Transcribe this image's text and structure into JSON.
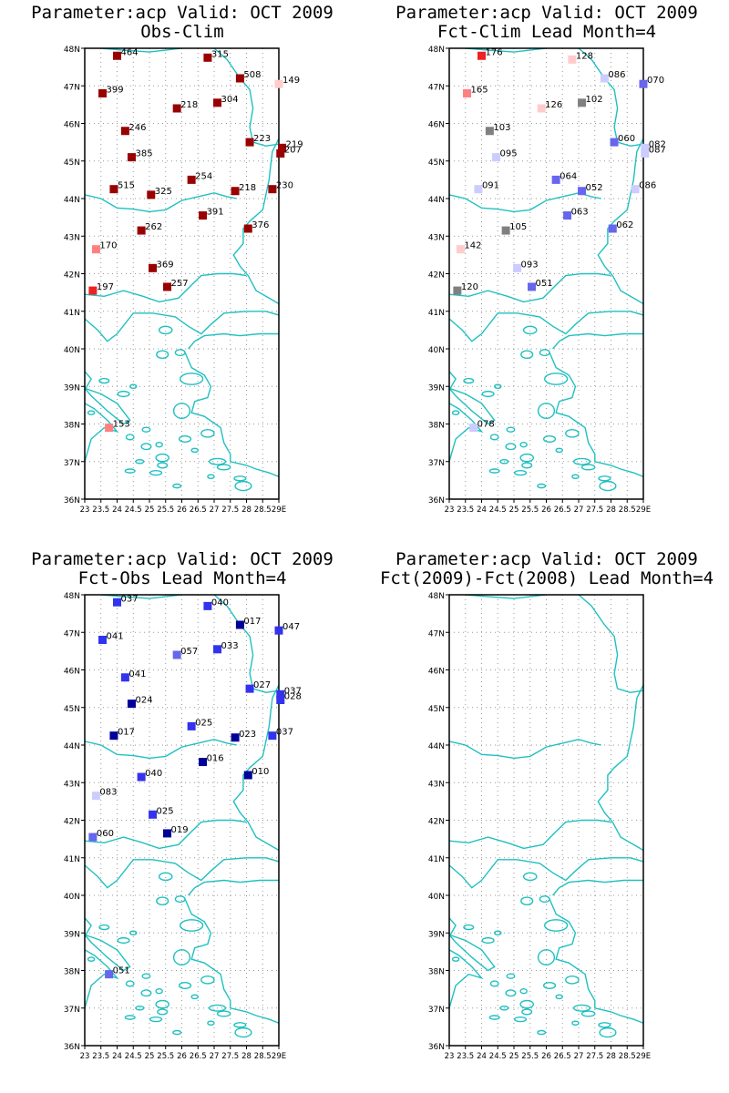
{
  "colors": {
    "coast": "#20c0c0",
    "grid": "#999999",
    "frame": "#000000",
    "text": "#000000"
  },
  "axes": {
    "lon_min": 23,
    "lon_max": 29,
    "lat_min": 36,
    "lat_max": 48,
    "lat_labels": [
      "36N",
      "37N",
      "38N",
      "39N",
      "40N",
      "41N",
      "42N",
      "43N",
      "44N",
      "45N",
      "46N",
      "47N",
      "48N"
    ],
    "lon_labels": [
      "23",
      "23.5",
      "24",
      "24.5",
      "25",
      "25.5",
      "26",
      "26.5",
      "27",
      "27.5",
      "28",
      "28.5",
      "29E"
    ],
    "lon_values": [
      23,
      23.5,
      24,
      24.5,
      25,
      25.5,
      26,
      26.5,
      27,
      27.5,
      28,
      28.5,
      29
    ]
  },
  "panels": [
    {
      "title1": "Parameter:acp Valid: OCT 2009",
      "title2": "Obs-Clim",
      "stations": [
        {
          "lon": 24.0,
          "lat": 47.8,
          "label": "464",
          "color": "#990000"
        },
        {
          "lon": 26.8,
          "lat": 47.75,
          "label": "315",
          "color": "#990000"
        },
        {
          "lon": 27.8,
          "lat": 47.2,
          "label": "508",
          "color": "#990000"
        },
        {
          "lon": 29.0,
          "lat": 47.05,
          "label": "149",
          "color": "#ffcccc"
        },
        {
          "lon": 23.55,
          "lat": 46.8,
          "label": "399",
          "color": "#990000"
        },
        {
          "lon": 27.1,
          "lat": 46.55,
          "label": "304",
          "color": "#990000"
        },
        {
          "lon": 25.85,
          "lat": 46.4,
          "label": "218",
          "color": "#990000"
        },
        {
          "lon": 24.25,
          "lat": 45.8,
          "label": "246",
          "color": "#990000"
        },
        {
          "lon": 28.1,
          "lat": 45.5,
          "label": "223",
          "color": "#990000"
        },
        {
          "lon": 29.1,
          "lat": 45.35,
          "label": "219",
          "color": "#990000"
        },
        {
          "lon": 29.05,
          "lat": 45.2,
          "label": "207",
          "color": "#990000"
        },
        {
          "lon": 24.45,
          "lat": 45.1,
          "label": "385",
          "color": "#990000"
        },
        {
          "lon": 26.3,
          "lat": 44.5,
          "label": "254",
          "color": "#990000"
        },
        {
          "lon": 23.9,
          "lat": 44.25,
          "label": "515",
          "color": "#990000"
        },
        {
          "lon": 25.05,
          "lat": 44.1,
          "label": "325",
          "color": "#990000"
        },
        {
          "lon": 27.65,
          "lat": 44.2,
          "label": "218",
          "color": "#990000"
        },
        {
          "lon": 28.8,
          "lat": 44.25,
          "label": "230",
          "color": "#990000"
        },
        {
          "lon": 26.65,
          "lat": 43.55,
          "label": "391",
          "color": "#990000"
        },
        {
          "lon": 24.75,
          "lat": 43.15,
          "label": "262",
          "color": "#990000"
        },
        {
          "lon": 28.05,
          "lat": 43.2,
          "label": "376",
          "color": "#990000"
        },
        {
          "lon": 23.35,
          "lat": 42.65,
          "label": "170",
          "color": "#ff8080"
        },
        {
          "lon": 25.1,
          "lat": 42.15,
          "label": "369",
          "color": "#990000"
        },
        {
          "lon": 25.55,
          "lat": 41.65,
          "label": "257",
          "color": "#990000"
        },
        {
          "lon": 23.25,
          "lat": 41.55,
          "label": "197",
          "color": "#ee2222"
        },
        {
          "lon": 23.75,
          "lat": 37.9,
          "label": "153",
          "color": "#ff8080"
        }
      ]
    },
    {
      "title1": "Parameter:acp Valid: OCT 2009",
      "title2": "Fct-Clim Lead Month=4",
      "stations": [
        {
          "lon": 24.0,
          "lat": 47.8,
          "label": "176",
          "color": "#ee2222"
        },
        {
          "lon": 26.8,
          "lat": 47.7,
          "label": "128",
          "color": "#ffcccc"
        },
        {
          "lon": 27.8,
          "lat": 47.2,
          "label": "086",
          "color": "#ccccff"
        },
        {
          "lon": 29.0,
          "lat": 47.05,
          "label": "070",
          "color": "#6666ee"
        },
        {
          "lon": 23.55,
          "lat": 46.8,
          "label": "165",
          "color": "#ff8080"
        },
        {
          "lon": 27.1,
          "lat": 46.55,
          "label": "102",
          "color": "#808080"
        },
        {
          "lon": 25.85,
          "lat": 46.4,
          "label": "126",
          "color": "#ffcccc"
        },
        {
          "lon": 24.25,
          "lat": 45.8,
          "label": "103",
          "color": "#808080"
        },
        {
          "lon": 28.1,
          "lat": 45.5,
          "label": "060",
          "color": "#6666ee"
        },
        {
          "lon": 29.05,
          "lat": 45.35,
          "label": "082",
          "color": "#ccccff"
        },
        {
          "lon": 29.05,
          "lat": 45.2,
          "label": "087",
          "color": "#ccccff"
        },
        {
          "lon": 24.45,
          "lat": 45.1,
          "label": "095",
          "color": "#ccccff"
        },
        {
          "lon": 26.3,
          "lat": 44.5,
          "label": "064",
          "color": "#6666ee"
        },
        {
          "lon": 23.9,
          "lat": 44.25,
          "label": "091",
          "color": "#ccccff"
        },
        {
          "lon": 27.1,
          "lat": 44.2,
          "label": "052",
          "color": "#6666ee"
        },
        {
          "lon": 28.75,
          "lat": 44.25,
          "label": "086",
          "color": "#ccccff"
        },
        {
          "lon": 26.65,
          "lat": 43.55,
          "label": "063",
          "color": "#6666ee"
        },
        {
          "lon": 24.75,
          "lat": 43.15,
          "label": "105",
          "color": "#808080"
        },
        {
          "lon": 28.05,
          "lat": 43.2,
          "label": "062",
          "color": "#6666ee"
        },
        {
          "lon": 23.35,
          "lat": 42.65,
          "label": "142",
          "color": "#ffcccc"
        },
        {
          "lon": 25.1,
          "lat": 42.15,
          "label": "093",
          "color": "#ccccff"
        },
        {
          "lon": 25.55,
          "lat": 41.65,
          "label": "051",
          "color": "#6666ee"
        },
        {
          "lon": 23.25,
          "lat": 41.55,
          "label": "120",
          "color": "#808080"
        },
        {
          "lon": 23.75,
          "lat": 37.9,
          "label": "078",
          "color": "#ccccff"
        }
      ]
    },
    {
      "title1": "Parameter:acp Valid: OCT 2009",
      "title2": "Fct-Obs Lead Month=4",
      "stations": [
        {
          "lon": 24.0,
          "lat": 47.8,
          "label": "037",
          "color": "#3333ee"
        },
        {
          "lon": 26.8,
          "lat": 47.7,
          "label": "040",
          "color": "#3333ee"
        },
        {
          "lon": 27.8,
          "lat": 47.2,
          "label": "017",
          "color": "#000099"
        },
        {
          "lon": 29.0,
          "lat": 47.05,
          "label": "047",
          "color": "#3333ee"
        },
        {
          "lon": 23.55,
          "lat": 46.8,
          "label": "041",
          "color": "#3333ee"
        },
        {
          "lon": 27.1,
          "lat": 46.55,
          "label": "033",
          "color": "#3333ee"
        },
        {
          "lon": 25.85,
          "lat": 46.4,
          "label": "057",
          "color": "#6666ee"
        },
        {
          "lon": 24.25,
          "lat": 45.8,
          "label": "041",
          "color": "#3333ee"
        },
        {
          "lon": 28.1,
          "lat": 45.5,
          "label": "027",
          "color": "#3333ee"
        },
        {
          "lon": 29.05,
          "lat": 45.35,
          "label": "037",
          "color": "#3333ee"
        },
        {
          "lon": 29.05,
          "lat": 45.2,
          "label": "028",
          "color": "#3333ee"
        },
        {
          "lon": 24.45,
          "lat": 45.1,
          "label": "024",
          "color": "#000099"
        },
        {
          "lon": 26.3,
          "lat": 44.5,
          "label": "025",
          "color": "#3333ee"
        },
        {
          "lon": 23.9,
          "lat": 44.25,
          "label": "017",
          "color": "#000099"
        },
        {
          "lon": 27.65,
          "lat": 44.2,
          "label": "023",
          "color": "#000099"
        },
        {
          "lon": 28.8,
          "lat": 44.25,
          "label": "037",
          "color": "#3333ee"
        },
        {
          "lon": 26.65,
          "lat": 43.55,
          "label": "016",
          "color": "#000099"
        },
        {
          "lon": 24.75,
          "lat": 43.15,
          "label": "040",
          "color": "#3333ee"
        },
        {
          "lon": 28.05,
          "lat": 43.2,
          "label": "010",
          "color": "#000099"
        },
        {
          "lon": 23.35,
          "lat": 42.65,
          "label": "083",
          "color": "#ccccff"
        },
        {
          "lon": 25.1,
          "lat": 42.15,
          "label": "025",
          "color": "#3333ee"
        },
        {
          "lon": 25.55,
          "lat": 41.65,
          "label": "019",
          "color": "#000099"
        },
        {
          "lon": 23.25,
          "lat": 41.55,
          "label": "060",
          "color": "#6666ee"
        },
        {
          "lon": 23.75,
          "lat": 37.9,
          "label": "051",
          "color": "#6666ee"
        }
      ]
    },
    {
      "title1": "Parameter:acp Valid: OCT 2009",
      "title2": "Fct(2009)-Fct(2008) Lead Month=4",
      "stations": []
    }
  ]
}
